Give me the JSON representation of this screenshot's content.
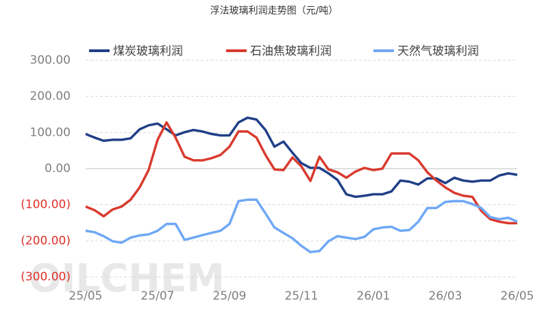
{
  "chart_data": {
    "type": "line",
    "title": "浮法玻璃利润走势图（元/吨）",
    "watermark": "OILCHEM",
    "categories": [
      "25/05",
      null,
      null,
      null,
      null,
      null,
      null,
      null,
      "25/07",
      null,
      null,
      null,
      null,
      null,
      null,
      null,
      "25/09",
      null,
      null,
      null,
      null,
      null,
      null,
      null,
      "25/11",
      null,
      null,
      null,
      null,
      null,
      null,
      null,
      "26/01",
      null,
      null,
      null,
      null,
      null,
      null,
      null,
      "26/03",
      null,
      null,
      null,
      null,
      null,
      null,
      null,
      "26/05"
    ],
    "series": [
      {
        "name": "煤炭玻璃利润",
        "color": "#1f3f87",
        "values": [
          96,
          86,
          77,
          80,
          80,
          84,
          109,
          120,
          125,
          109,
          92,
          101,
          107,
          103,
          96,
          92,
          92,
          128,
          141,
          136,
          107,
          61,
          75,
          44,
          15,
          2,
          2,
          -13,
          -31,
          -71,
          -78,
          -75,
          -71,
          -71,
          -63,
          -33,
          -36,
          -44,
          -27,
          -27,
          -40,
          -25,
          -33,
          -36,
          -33,
          -33,
          -19,
          -13,
          -17
        ]
      },
      {
        "name": "石油焦玻璃利润",
        "color": "#d93a2e",
        "values": [
          -105,
          -115,
          -132,
          -113,
          -105,
          -86,
          -52,
          -4,
          80,
          128,
          86,
          33,
          23,
          23,
          29,
          38,
          61,
          103,
          103,
          86,
          38,
          -2,
          -4,
          31,
          6,
          -34,
          33,
          -2,
          -10,
          -25,
          -8,
          2,
          -4,
          0,
          42,
          42,
          42,
          23,
          -10,
          -33,
          -52,
          -67,
          -75,
          -78,
          -117,
          -140,
          -147,
          -151,
          -151
        ]
      },
      {
        "name": "天然气玻璃利润",
        "color": "#6fa8f5",
        "values": [
          -172,
          -176,
          -187,
          -201,
          -205,
          -191,
          -185,
          -182,
          -172,
          -153,
          -153,
          -197,
          -191,
          -184,
          -178,
          -172,
          -153,
          -90,
          -86,
          -86,
          -124,
          -163,
          -178,
          -193,
          -214,
          -231,
          -228,
          -201,
          -187,
          -191,
          -195,
          -189,
          -168,
          -163,
          -161,
          -172,
          -170,
          -147,
          -109,
          -109,
          -92,
          -90,
          -90,
          -98,
          -109,
          -134,
          -140,
          -136,
          -147
        ]
      }
    ],
    "ylim": [
      -300,
      300
    ],
    "yticks": [
      {
        "value": -300,
        "label": "(300.00)"
      },
      {
        "value": -200,
        "label": "(200.00)"
      },
      {
        "value": -100,
        "label": "(100.00)"
      },
      {
        "value": 0,
        "label": "0.00"
      },
      {
        "value": 100,
        "label": "100.00"
      },
      {
        "value": 200,
        "label": "200.00"
      },
      {
        "value": 300,
        "label": "300.00"
      }
    ],
    "grid": true,
    "negative_tick_color": "#e0302a",
    "legend": "top"
  }
}
